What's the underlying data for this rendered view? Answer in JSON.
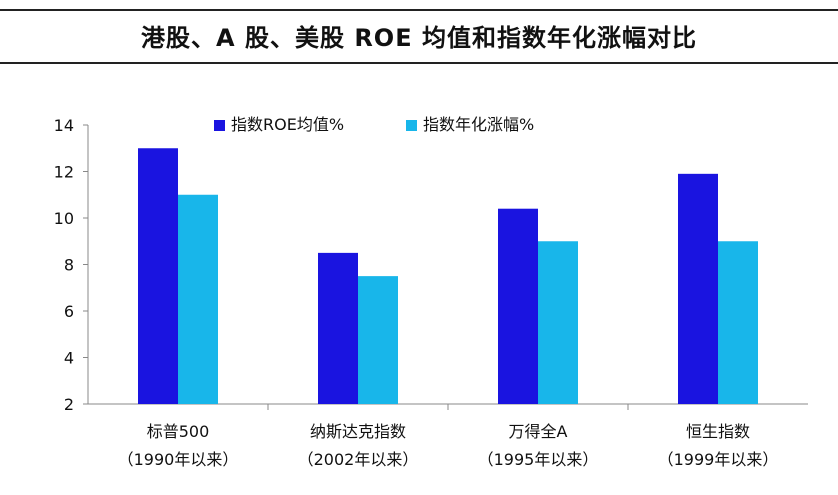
{
  "title": "港股、A 股、美股 ROE 均值和指数年化涨幅对比",
  "chart_data": {
    "type": "bar",
    "title": "",
    "xlabel": "",
    "ylabel": "",
    "ylim": [
      2,
      14
    ],
    "yticks": [
      2,
      4,
      6,
      8,
      10,
      12,
      14
    ],
    "grid": false,
    "legend_position": "top",
    "categories": [
      {
        "name": "标普500",
        "period": "（1990年以来）"
      },
      {
        "name": "纳斯达克指数",
        "period": "（2002年以来）"
      },
      {
        "name": "万得全A",
        "period": "（1995年以来）"
      },
      {
        "name": "恒生指数",
        "period": "（1999年以来）"
      }
    ],
    "series": [
      {
        "name": "指数ROE均值%",
        "color": "#1a14e0",
        "values": [
          13.0,
          8.5,
          10.4,
          11.9
        ]
      },
      {
        "name": "指数年化涨幅%",
        "color": "#18b6ea",
        "values": [
          11.0,
          7.5,
          9.0,
          9.0
        ]
      }
    ]
  }
}
